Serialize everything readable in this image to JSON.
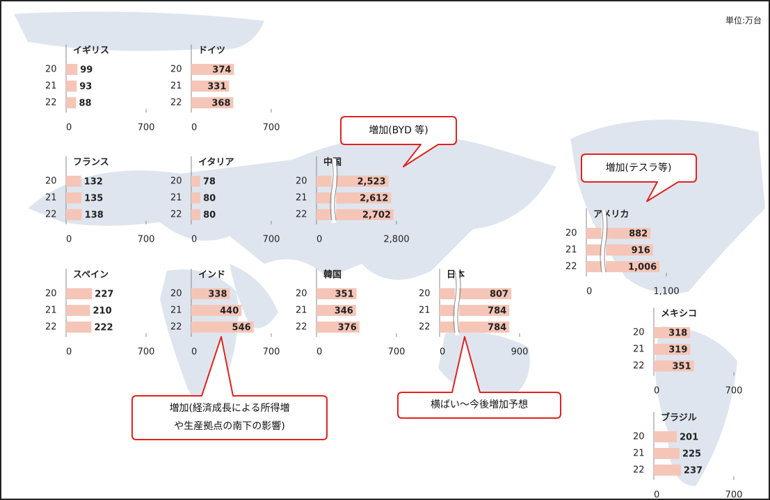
{
  "unit": "単位:万台",
  "chart_data": [
    {
      "type": "bar",
      "title": "イギリス",
      "categories": [
        "20",
        "21",
        "22"
      ],
      "values": [
        99,
        93,
        88
      ],
      "xlim": [
        0,
        700
      ],
      "xticks": [
        0,
        700
      ],
      "color": "#f5c6b8"
    },
    {
      "type": "bar",
      "title": "ドイツ",
      "categories": [
        "20",
        "21",
        "22"
      ],
      "values": [
        374,
        331,
        368
      ],
      "xlim": [
        0,
        700
      ],
      "xticks": [
        0,
        700
      ],
      "color": "#f5c6b8"
    },
    {
      "type": "bar",
      "title": "フランス",
      "categories": [
        "20",
        "21",
        "22"
      ],
      "values": [
        132,
        135,
        138
      ],
      "xlim": [
        0,
        700
      ],
      "xticks": [
        0,
        700
      ],
      "color": "#f5c6b8"
    },
    {
      "type": "bar",
      "title": "イタリア",
      "categories": [
        "20",
        "21",
        "22"
      ],
      "values": [
        78,
        80,
        80
      ],
      "xlim": [
        0,
        700
      ],
      "xticks": [
        0,
        700
      ],
      "color": "#f5c6b8"
    },
    {
      "type": "bar",
      "title": "中国",
      "categories": [
        "20",
        "21",
        "22"
      ],
      "values": [
        2523,
        2612,
        2702
      ],
      "value_labels": [
        "2,523",
        "2,612",
        "2,702"
      ],
      "xlim": [
        0,
        2800
      ],
      "xticks": [
        0,
        {
          "value": 2800,
          "label": "2,800"
        }
      ],
      "axis_break": true,
      "color": "#f5c6b8"
    },
    {
      "type": "bar",
      "title": "スペイン",
      "categories": [
        "20",
        "21",
        "22"
      ],
      "values": [
        227,
        210,
        222
      ],
      "xlim": [
        0,
        700
      ],
      "xticks": [
        0,
        700
      ],
      "color": "#f5c6b8"
    },
    {
      "type": "bar",
      "title": "インド",
      "categories": [
        "20",
        "21",
        "22"
      ],
      "values": [
        338,
        440,
        546
      ],
      "xlim": [
        0,
        700
      ],
      "xticks": [
        0,
        700
      ],
      "color": "#f5c6b8"
    },
    {
      "type": "bar",
      "title": "韓国",
      "categories": [
        "20",
        "21",
        "22"
      ],
      "values": [
        351,
        346,
        376
      ],
      "xlim": [
        0,
        700
      ],
      "xticks": [
        0,
        700
      ],
      "color": "#f5c6b8"
    },
    {
      "type": "bar",
      "title": "日本",
      "categories": [
        "20",
        "21",
        "22"
      ],
      "values": [
        807,
        784,
        784
      ],
      "xlim": [
        0,
        900
      ],
      "xticks": [
        0,
        900
      ],
      "axis_break": true,
      "color": "#f5c6b8"
    },
    {
      "type": "bar",
      "title": "アメリカ",
      "categories": [
        "20",
        "21",
        "22"
      ],
      "values": [
        882,
        916,
        1006
      ],
      "value_labels": [
        "882",
        "916",
        "1,006"
      ],
      "xlim": [
        0,
        1100
      ],
      "xticks": [
        0,
        {
          "value": 1100,
          "label": "1,100"
        }
      ],
      "axis_break": true,
      "color": "#f5c6b8"
    },
    {
      "type": "bar",
      "title": "メキシコ",
      "categories": [
        "20",
        "21",
        "22"
      ],
      "values": [
        318,
        319,
        351
      ],
      "xlim": [
        0,
        700
      ],
      "xticks": [
        0,
        700
      ],
      "color": "#f5c6b8"
    },
    {
      "type": "bar",
      "title": "ブラジル",
      "categories": [
        "20",
        "21",
        "22"
      ],
      "values": [
        201,
        225,
        237
      ],
      "xlim": [
        0,
        700
      ],
      "xticks": [
        0,
        700
      ],
      "color": "#f5c6b8"
    }
  ],
  "annotations": [
    {
      "lines": [
        "増加(BYD 等)"
      ]
    },
    {
      "lines": [
        "増加(テスラ等)"
      ]
    },
    {
      "lines": [
        "増加(経済成長による所得増",
        "や生産拠点の南下の影響)"
      ]
    },
    {
      "lines": [
        "横ばい～今後増加予想"
      ]
    }
  ]
}
